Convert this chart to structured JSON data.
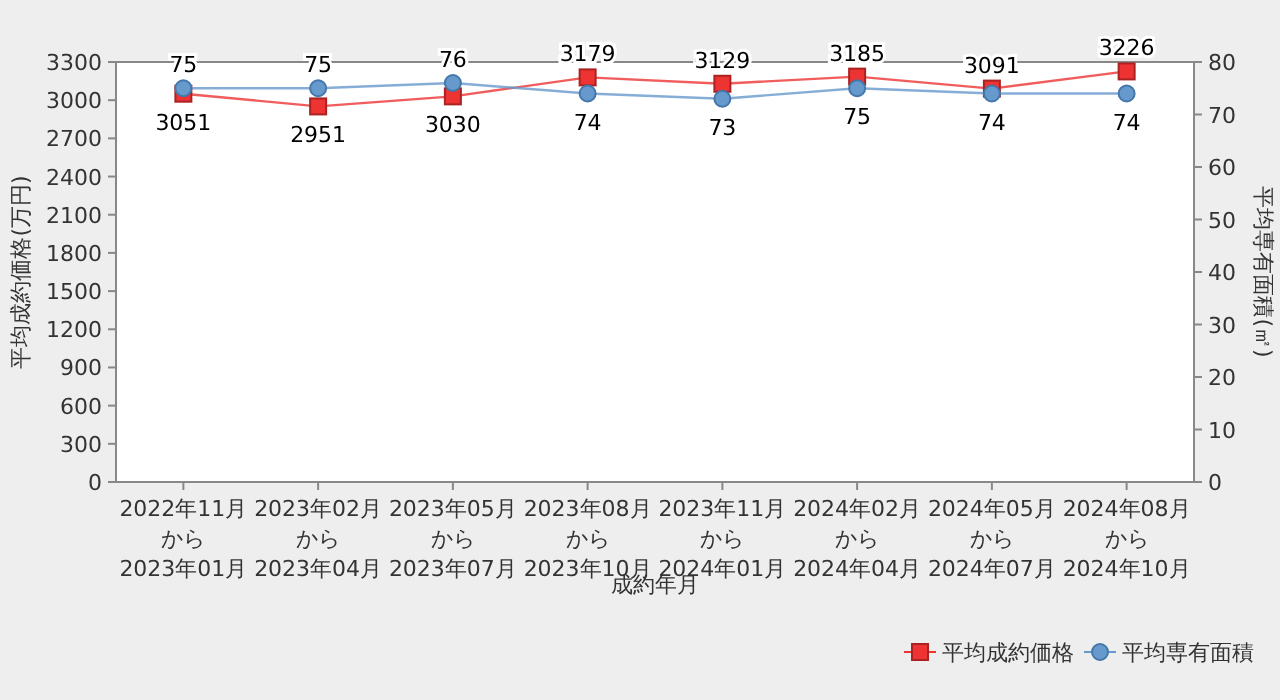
{
  "chart_data": {
    "type": "line",
    "xlabel": "成約年月",
    "ylabel": "平均成約価格(万円)",
    "y2label": "平均専有面積(㎡)",
    "categories": [
      "2022年11月から2023年01月",
      "2023年02月から2023年04月",
      "2023年05月から2023年07月",
      "2023年08月から2023年10月",
      "2023年11月から2024年01月",
      "2024年02月から2024年04月",
      "2024年05月から2024年07月",
      "2024年08月から2024年10月"
    ],
    "series": [
      {
        "name": "平均成約価格",
        "color": "#ee3333",
        "marker": "square",
        "values": [
          3051,
          2951,
          3030,
          3179,
          3129,
          3185,
          3091,
          3226
        ]
      },
      {
        "name": "平均専有面積",
        "color": "#6699cc",
        "marker": "circle",
        "axis": "y2",
        "values": [
          75,
          75,
          76,
          74,
          73,
          75,
          74,
          74
        ]
      }
    ],
    "ylim": [
      0,
      3300
    ],
    "yticks": [
      0,
      300,
      600,
      900,
      1200,
      1500,
      1800,
      2100,
      2400,
      2700,
      3000,
      3300
    ],
    "y2lim": [
      0,
      80
    ],
    "y2ticks": [
      0,
      10,
      20,
      30,
      40,
      50,
      60,
      70,
      80
    ],
    "data_labels": true,
    "legend": "bottom right",
    "grid": false
  }
}
